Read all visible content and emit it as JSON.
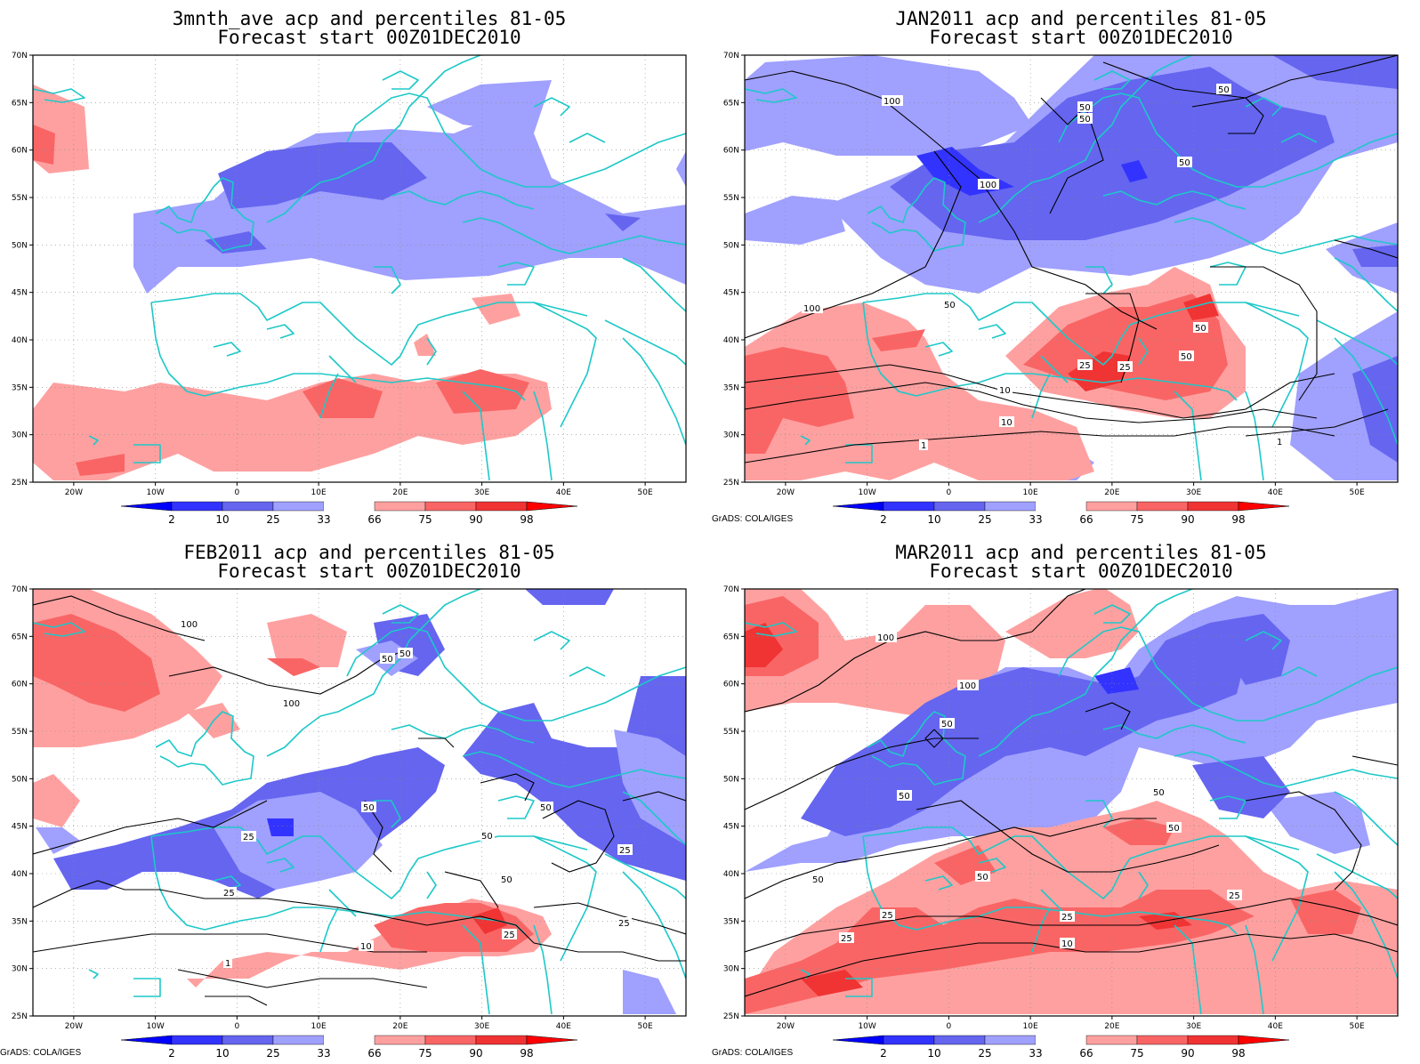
{
  "panels": [
    {
      "title1": "3mnth_ave acp and percentiles 81-05",
      "title2": "Forecast start 00Z01DEC2010",
      "credit": ""
    },
    {
      "title1": "JAN2011 acp and percentiles 81-05",
      "title2": "Forecast start 00Z01DEC2010",
      "credit": "GrADS: COLA/IGES"
    },
    {
      "title1": "FEB2011 acp and percentiles 81-05",
      "title2": "Forecast start 00Z01DEC2010",
      "credit": "GrADS: COLA/IGES"
    },
    {
      "title1": "MAR2011 acp and percentiles 81-05",
      "title2": "Forecast start 00Z01DEC2010",
      "credit": "GrADS: COLA/IGES"
    }
  ],
  "map": {
    "lat_labels": [
      "70N",
      "65N",
      "60N",
      "55N",
      "50N",
      "45N",
      "40N",
      "35N",
      "30N",
      "25N"
    ],
    "lon_labels": [
      "20W",
      "10W",
      "0",
      "10E",
      "20E",
      "30E",
      "40E",
      "50E"
    ],
    "lon_range": [
      -25,
      55
    ],
    "lat_range": [
      25,
      70
    ]
  },
  "legend": {
    "labels": [
      "2",
      "10",
      "25",
      "33",
      "66",
      "75",
      "90",
      "98"
    ],
    "colors": [
      "#0000ff",
      "#3333ff",
      "#6565f0",
      "#a0a0ff",
      "#ffffff",
      "#ffa0a0",
      "#f96565",
      "#f03333",
      "#ff0000"
    ]
  },
  "colors": {
    "coast": "#1ec8c8",
    "contour": "#000000"
  },
  "contour_labels": [
    [],
    [
      "100",
      "100",
      "50",
      "50",
      "50",
      "50",
      "50",
      "50",
      "50",
      "25",
      "25",
      "10",
      "10",
      "1",
      "1",
      "100"
    ],
    [
      "100",
      "100",
      "50",
      "50",
      "25",
      "50",
      "50",
      "25",
      "50",
      "25",
      "10",
      "25",
      "1",
      "50",
      "25"
    ],
    [
      "100",
      "100",
      "50",
      "50",
      "25",
      "50",
      "50",
      "50",
      "25",
      "10",
      "25",
      "50",
      "25"
    ]
  ]
}
